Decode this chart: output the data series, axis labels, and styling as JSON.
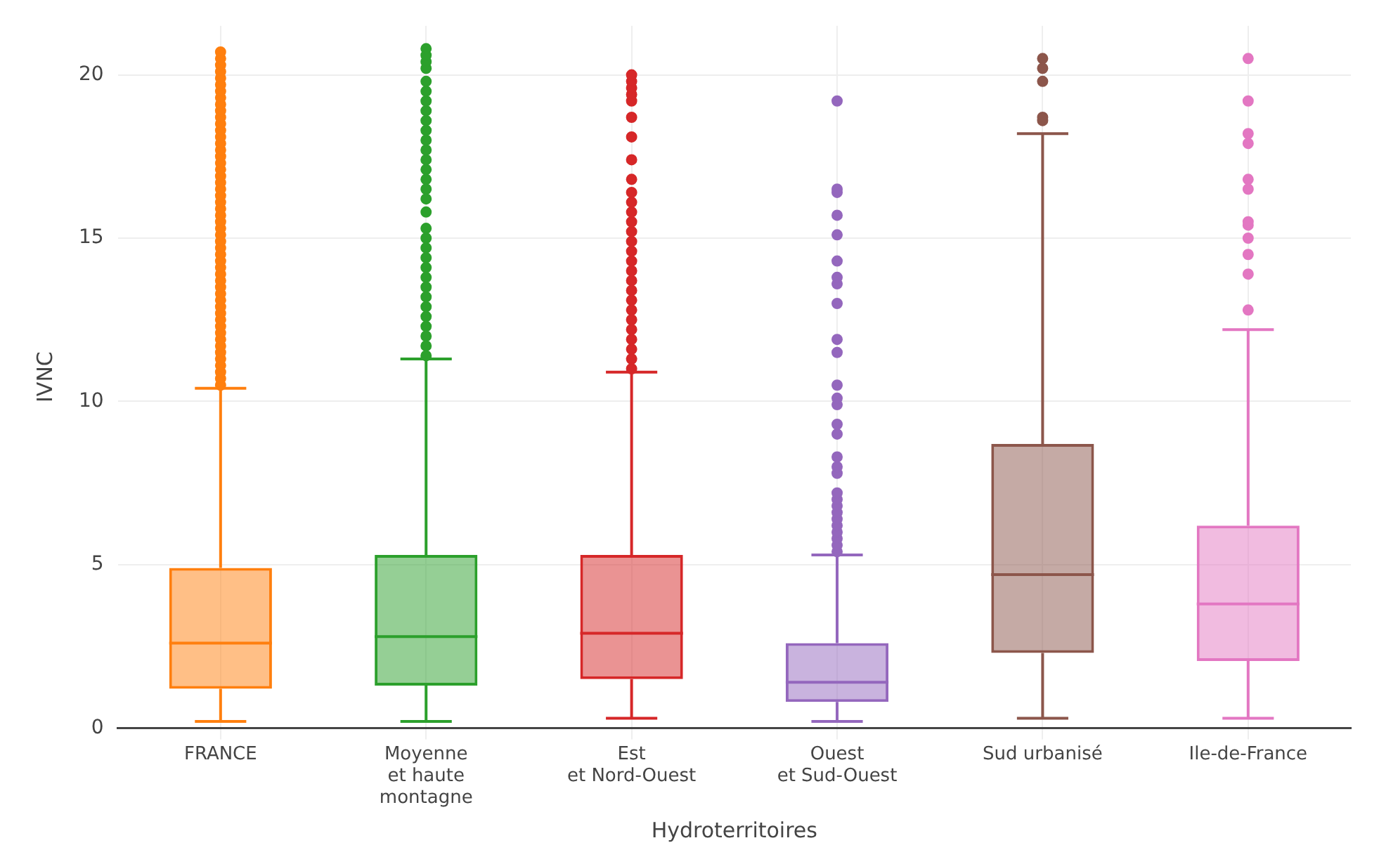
{
  "chart_data": {
    "type": "box",
    "xlabel": "Hydroterritoires",
    "ylabel": "IVNC",
    "categories": [
      "FRANCE",
      "Moyenne\net haute\nmontagne",
      "Est\net Nord-Ouest",
      "Ouest\net Sud-Ouest",
      "Sud urbanisé",
      "Ile-de-France"
    ],
    "colors": [
      "#ff7f0e",
      "#2ca02c",
      "#d62728",
      "#9467bd",
      "#8c564b",
      "#e377c2"
    ],
    "boxes": [
      {
        "low": 0.2,
        "q1": 1.2,
        "median": 2.6,
        "q3": 4.9,
        "high": 10.4,
        "outliers": [
          10.5,
          10.7,
          10.9,
          11.1,
          11.3,
          11.5,
          11.7,
          11.9,
          12.1,
          12.3,
          12.5,
          12.7,
          12.9,
          13.1,
          13.3,
          13.5,
          13.7,
          13.9,
          14.1,
          14.3,
          14.5,
          14.7,
          14.9,
          15.1,
          15.3,
          15.5,
          15.7,
          15.9,
          16.1,
          16.3,
          16.5,
          16.7,
          16.9,
          17.1,
          17.3,
          17.5,
          17.7,
          17.9,
          18.1,
          18.3,
          18.5,
          18.7,
          18.9,
          19.1,
          19.3,
          19.5,
          19.7,
          19.9,
          20.1,
          20.3,
          20.5,
          20.7
        ]
      },
      {
        "low": 0.2,
        "q1": 1.3,
        "median": 2.8,
        "q3": 5.3,
        "high": 11.3,
        "outliers": [
          11.4,
          11.7,
          12.0,
          12.3,
          12.6,
          12.9,
          13.2,
          13.5,
          13.8,
          14.1,
          14.4,
          14.7,
          15.0,
          15.3,
          15.8,
          16.2,
          16.5,
          16.8,
          17.1,
          17.4,
          17.7,
          18.0,
          18.3,
          18.6,
          18.9,
          19.2,
          19.5,
          19.8,
          20.2,
          20.4,
          20.6,
          20.8
        ]
      },
      {
        "low": 0.3,
        "q1": 1.5,
        "median": 2.9,
        "q3": 5.3,
        "high": 10.9,
        "outliers": [
          11.0,
          11.3,
          11.6,
          11.9,
          12.2,
          12.5,
          12.8,
          13.1,
          13.4,
          13.7,
          14.0,
          14.3,
          14.6,
          14.9,
          15.2,
          15.5,
          15.8,
          16.1,
          16.4,
          16.8,
          17.4,
          18.1,
          18.7,
          19.2,
          19.4,
          19.6,
          19.8,
          20.0
        ]
      },
      {
        "low": 0.2,
        "q1": 0.8,
        "median": 1.4,
        "q3": 2.6,
        "high": 5.3,
        "outliers": [
          5.4,
          5.6,
          5.8,
          6.0,
          6.2,
          6.4,
          6.6,
          6.8,
          7.0,
          7.2,
          7.8,
          8.0,
          8.3,
          9.0,
          9.3,
          9.9,
          10.1,
          10.5,
          11.5,
          11.9,
          13.0,
          13.6,
          13.8,
          14.3,
          15.1,
          15.7,
          16.4,
          16.5,
          19.2
        ]
      },
      {
        "low": 0.3,
        "q1": 2.3,
        "median": 4.7,
        "q3": 8.7,
        "high": 18.2,
        "outliers": [
          18.6,
          18.7,
          19.8,
          20.2,
          20.5
        ]
      },
      {
        "low": 0.3,
        "q1": 2.05,
        "median": 3.8,
        "q3": 6.2,
        "high": 12.2,
        "outliers": [
          12.8,
          13.9,
          14.5,
          15.0,
          15.4,
          15.5,
          16.5,
          16.8,
          17.9,
          18.2,
          19.2,
          20.5
        ]
      }
    ],
    "ylim": [
      0,
      21.5
    ],
    "yticks": [
      0,
      5,
      10,
      15,
      20
    ],
    "grid": true
  }
}
